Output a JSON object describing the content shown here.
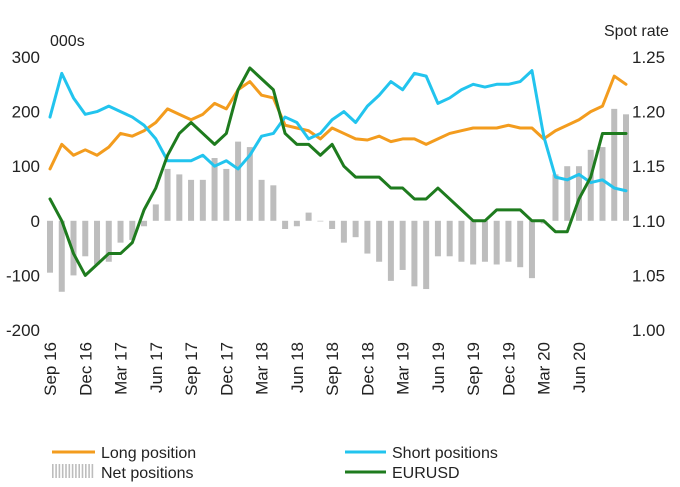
{
  "chart_data": {
    "type": "line",
    "title": "",
    "left_axis": {
      "unit_label": "000s",
      "ylim": [
        -200,
        300
      ],
      "ticks": [
        "300",
        "200",
        "100",
        "0",
        "-100",
        "-200"
      ]
    },
    "right_axis": {
      "unit_label": "Spot rate",
      "ylim": [
        1.0,
        1.25
      ],
      "ticks": [
        "1.25",
        "1.20",
        "1.15",
        "1.10",
        "1.05",
        "1.00"
      ]
    },
    "x_tick_labels": [
      "Sep 16",
      "Dec 16",
      "Mar 17",
      "Jun 17",
      "Sep 17",
      "Dec 17",
      "Mar 18",
      "Jun 18",
      "Sep 18",
      "Dec 18",
      "Mar 19",
      "Jun 19",
      "Sep 19",
      "Dec 19",
      "Mar 20",
      "Jun 20"
    ],
    "x": [
      "2016-09",
      "2016-10",
      "2016-11",
      "2016-12",
      "2017-01",
      "2017-02",
      "2017-03",
      "2017-04",
      "2017-05",
      "2017-06",
      "2017-07",
      "2017-08",
      "2017-09",
      "2017-10",
      "2017-11",
      "2017-12",
      "2018-01",
      "2018-02",
      "2018-03",
      "2018-04",
      "2018-05",
      "2018-06",
      "2018-07",
      "2018-08",
      "2018-09",
      "2018-10",
      "2018-11",
      "2018-12",
      "2019-01",
      "2019-02",
      "2019-03",
      "2019-04",
      "2019-05",
      "2019-06",
      "2019-07",
      "2019-08",
      "2019-09",
      "2019-10",
      "2019-11",
      "2019-12",
      "2020-01",
      "2020-02",
      "2020-03",
      "2020-04",
      "2020-05",
      "2020-06",
      "2020-07",
      "2020-08",
      "2020-09",
      "2020-10"
    ],
    "series": [
      {
        "name": "Long position",
        "axis": "left",
        "kind": "line",
        "color": "#F39C1E",
        "values": [
          95,
          140,
          120,
          130,
          120,
          135,
          160,
          155,
          165,
          180,
          205,
          195,
          185,
          195,
          215,
          205,
          240,
          255,
          230,
          225,
          175,
          170,
          165,
          150,
          170,
          160,
          150,
          148,
          155,
          145,
          150,
          150,
          140,
          150,
          160,
          165,
          170,
          170,
          170,
          175,
          170,
          170,
          150,
          165,
          175,
          185,
          200,
          210,
          265,
          250
        ]
      },
      {
        "name": "Short positions",
        "axis": "left",
        "kind": "line",
        "color": "#22C4EE",
        "values": [
          190,
          270,
          225,
          195,
          200,
          210,
          200,
          190,
          175,
          150,
          110,
          110,
          110,
          120,
          100,
          110,
          95,
          120,
          155,
          160,
          190,
          180,
          150,
          160,
          185,
          200,
          180,
          210,
          230,
          255,
          240,
          270,
          265,
          215,
          225,
          240,
          250,
          245,
          250,
          250,
          255,
          275,
          155,
          80,
          75,
          85,
          70,
          75,
          60,
          55
        ]
      },
      {
        "name": "Net positions",
        "axis": "left",
        "kind": "bar",
        "color": "#BDBDBD",
        "values": [
          -95,
          -130,
          -100,
          -65,
          -80,
          -75,
          -40,
          -35,
          -10,
          30,
          95,
          85,
          75,
          75,
          115,
          95,
          145,
          135,
          75,
          65,
          -15,
          -10,
          15,
          0,
          -15,
          -40,
          -30,
          -60,
          -75,
          -110,
          -90,
          -120,
          -125,
          -65,
          -65,
          -75,
          -80,
          -75,
          -80,
          -75,
          -85,
          -105,
          -5,
          85,
          100,
          100,
          130,
          135,
          205,
          195
        ]
      },
      {
        "name": "EURUSD",
        "axis": "right",
        "kind": "line",
        "color": "#1E7B1E",
        "values": [
          1.12,
          1.1,
          1.07,
          1.05,
          1.06,
          1.07,
          1.07,
          1.08,
          1.11,
          1.13,
          1.16,
          1.18,
          1.19,
          1.18,
          1.17,
          1.18,
          1.22,
          1.24,
          1.23,
          1.22,
          1.18,
          1.17,
          1.17,
          1.16,
          1.17,
          1.15,
          1.14,
          1.14,
          1.14,
          1.13,
          1.13,
          1.12,
          1.12,
          1.13,
          1.12,
          1.11,
          1.1,
          1.1,
          1.11,
          1.11,
          1.11,
          1.1,
          1.1,
          1.09,
          1.09,
          1.12,
          1.14,
          1.18,
          1.18,
          1.18
        ]
      }
    ],
    "legend": {
      "placement": "bottom",
      "items": [
        {
          "label": "Long position",
          "marker": "line",
          "color": "#F39C1E"
        },
        {
          "label": "Short positions",
          "marker": "line",
          "color": "#22C4EE"
        },
        {
          "label": "Net positions",
          "marker": "bars",
          "color": "#BDBDBD"
        },
        {
          "label": "EURUSD",
          "marker": "line",
          "color": "#1E7B1E"
        }
      ]
    },
    "grid": false
  }
}
